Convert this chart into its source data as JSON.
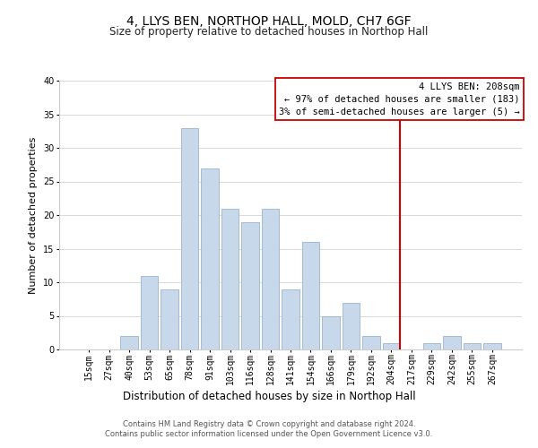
{
  "title": "4, LLYS BEN, NORTHOP HALL, MOLD, CH7 6GF",
  "subtitle": "Size of property relative to detached houses in Northop Hall",
  "xlabel": "Distribution of detached houses by size in Northop Hall",
  "ylabel": "Number of detached properties",
  "bar_labels": [
    "15sqm",
    "27sqm",
    "40sqm",
    "53sqm",
    "65sqm",
    "78sqm",
    "91sqm",
    "103sqm",
    "116sqm",
    "128sqm",
    "141sqm",
    "154sqm",
    "166sqm",
    "179sqm",
    "192sqm",
    "204sqm",
    "217sqm",
    "229sqm",
    "242sqm",
    "255sqm",
    "267sqm"
  ],
  "bar_values": [
    0,
    0,
    2,
    11,
    9,
    33,
    27,
    21,
    19,
    21,
    9,
    16,
    5,
    7,
    2,
    1,
    0,
    1,
    2,
    1,
    1
  ],
  "bar_color": "#c8d8eb",
  "bar_edge_color": "#9ab4cc",
  "ylim": [
    0,
    40
  ],
  "yticks": [
    0,
    5,
    10,
    15,
    20,
    25,
    30,
    35,
    40
  ],
  "grid_color": "#d8d8d8",
  "bg_color": "#ffffff",
  "vline_color": "#cc0000",
  "annotation_title": "4 LLYS BEN: 208sqm",
  "annotation_line1": "← 97% of detached houses are smaller (183)",
  "annotation_line2": "3% of semi-detached houses are larger (5) →",
  "annotation_box_color": "#ffffff",
  "annotation_box_edge": "#cc0000",
  "footer_line1": "Contains HM Land Registry data © Crown copyright and database right 2024.",
  "footer_line2": "Contains public sector information licensed under the Open Government Licence v3.0.",
  "title_fontsize": 10,
  "subtitle_fontsize": 8.5,
  "xlabel_fontsize": 8.5,
  "ylabel_fontsize": 8,
  "tick_fontsize": 7,
  "footer_fontsize": 6,
  "annotation_fontsize": 7.5
}
